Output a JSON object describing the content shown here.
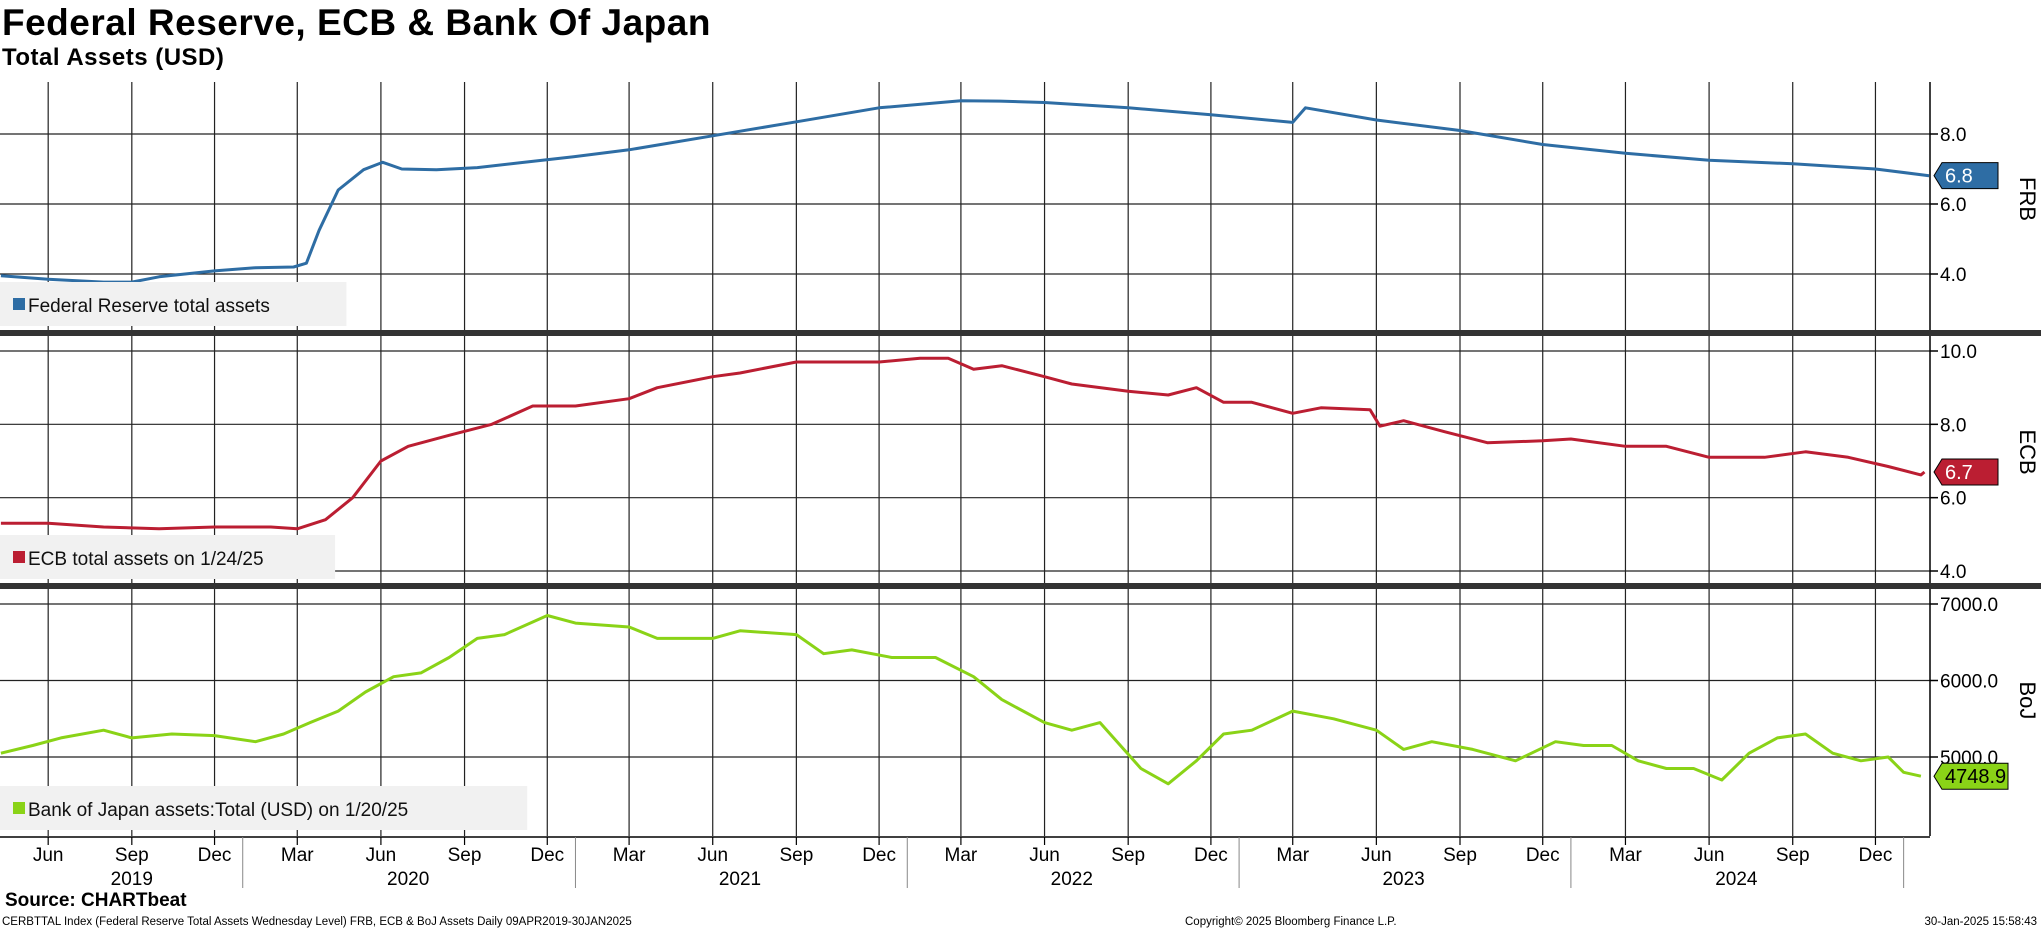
{
  "title": "Federal Reserve, ECB & Bank Of Japan",
  "subtitle": "Total Assets (USD)",
  "source": "Source: CHARTbeat",
  "footer": {
    "left": "CERBTTAL Index (Federal Reserve Total Assets Wednesday Level) FRB, ECB & BoJ Assets  Daily 09APR2019-30JAN2025",
    "center": "Copyright© 2025 Bloomberg Finance L.P.",
    "right": "30-Jan-2025 15:58:43"
  },
  "x_axis": {
    "months": [
      {
        "label": "Jun",
        "date": "2019-06-01"
      },
      {
        "label": "Sep",
        "date": "2019-09-01"
      },
      {
        "label": "Dec",
        "date": "2019-12-01"
      },
      {
        "label": "Mar",
        "date": "2020-03-01"
      },
      {
        "label": "Jun",
        "date": "2020-06-01"
      },
      {
        "label": "Sep",
        "date": "2020-09-01"
      },
      {
        "label": "Dec",
        "date": "2020-12-01"
      },
      {
        "label": "Mar",
        "date": "2021-03-01"
      },
      {
        "label": "Jun",
        "date": "2021-06-01"
      },
      {
        "label": "Sep",
        "date": "2021-09-01"
      },
      {
        "label": "Dec",
        "date": "2021-12-01"
      },
      {
        "label": "Mar",
        "date": "2022-03-01"
      },
      {
        "label": "Jun",
        "date": "2022-06-01"
      },
      {
        "label": "Sep",
        "date": "2022-09-01"
      },
      {
        "label": "Dec",
        "date": "2022-12-01"
      },
      {
        "label": "Mar",
        "date": "2023-03-01"
      },
      {
        "label": "Jun",
        "date": "2023-06-01"
      },
      {
        "label": "Sep",
        "date": "2023-09-01"
      },
      {
        "label": "Dec",
        "date": "2023-12-01"
      },
      {
        "label": "Mar",
        "date": "2024-03-01"
      },
      {
        "label": "Jun",
        "date": "2024-06-01"
      },
      {
        "label": "Sep",
        "date": "2024-09-01"
      },
      {
        "label": "Dec",
        "date": "2024-12-01"
      }
    ],
    "years": [
      {
        "label": "2019",
        "date": "2019-09-01"
      },
      {
        "label": "2020",
        "date": "2020-07-01"
      },
      {
        "label": "2021",
        "date": "2021-07-01"
      },
      {
        "label": "2022",
        "date": "2022-07-01"
      },
      {
        "label": "2023",
        "date": "2023-07-01"
      },
      {
        "label": "2024",
        "date": "2024-07-01"
      }
    ],
    "date_range": [
      "2019-04-09",
      "2025-01-30"
    ]
  },
  "chart_data": [
    {
      "type": "line",
      "axis_title": "FRB",
      "legend": "Federal Reserve total assets",
      "color": "#2e6da4",
      "ylim": [
        2.6,
        9.6
      ],
      "yticks": [
        "4.0",
        "6.0",
        "8.0"
      ],
      "last_value": "6.8",
      "series": [
        {
          "name": "Federal Reserve total assets",
          "x": [
            "2019-04-10",
            "2019-06-01",
            "2019-08-01",
            "2019-09-01",
            "2019-10-01",
            "2019-12-01",
            "2020-01-15",
            "2020-02-26",
            "2020-03-11",
            "2020-03-25",
            "2020-04-15",
            "2020-05-13",
            "2020-06-03",
            "2020-06-24",
            "2020-08-01",
            "2020-09-15",
            "2020-11-01",
            "2020-12-30",
            "2021-03-01",
            "2021-06-01",
            "2021-09-01",
            "2021-12-01",
            "2022-03-01",
            "2022-04-13",
            "2022-06-01",
            "2022-09-01",
            "2022-12-01",
            "2023-03-01",
            "2023-03-15",
            "2023-06-01",
            "2023-09-01",
            "2023-12-01",
            "2024-03-01",
            "2024-06-01",
            "2024-09-01",
            "2024-12-01",
            "2025-01-29"
          ],
          "y": [
            3.95,
            3.85,
            3.77,
            3.77,
            3.92,
            4.09,
            4.18,
            4.2,
            4.31,
            5.25,
            6.4,
            6.98,
            7.19,
            7.0,
            6.98,
            7.04,
            7.18,
            7.35,
            7.55,
            7.95,
            8.35,
            8.75,
            8.95,
            8.94,
            8.9,
            8.75,
            8.55,
            8.33,
            8.75,
            8.4,
            8.1,
            7.7,
            7.45,
            7.25,
            7.15,
            7.0,
            6.81
          ]
        }
      ]
    },
    {
      "type": "line",
      "axis_title": "ECB",
      "legend": "ECB total assets on 1/24/25",
      "color": "#bb1e32",
      "ylim": [
        3.8,
        10.3
      ],
      "yticks": [
        "4.0",
        "6.0",
        "8.0",
        "10.0"
      ],
      "last_value": "6.7",
      "series": [
        {
          "name": "ECB total assets",
          "x": [
            "2019-04-10",
            "2019-06-01",
            "2019-08-01",
            "2019-10-01",
            "2019-12-01",
            "2020-02-01",
            "2020-03-01",
            "2020-04-01",
            "2020-05-01",
            "2020-06-01",
            "2020-07-01",
            "2020-08-15",
            "2020-10-01",
            "2020-11-15",
            "2021-01-01",
            "2021-03-01",
            "2021-04-01",
            "2021-06-01",
            "2021-07-01",
            "2021-09-01",
            "2021-12-01",
            "2022-01-15",
            "2022-02-15",
            "2022-03-15",
            "2022-04-15",
            "2022-06-01",
            "2022-07-01",
            "2022-09-01",
            "2022-10-15",
            "2022-11-15",
            "2022-12-15",
            "2023-01-15",
            "2023-03-01",
            "2023-04-01",
            "2023-05-25",
            "2023-06-05",
            "2023-07-01",
            "2023-08-15",
            "2023-10-01",
            "2023-12-01",
            "2024-01-01",
            "2024-03-01",
            "2024-04-15",
            "2024-06-01",
            "2024-08-01",
            "2024-09-15",
            "2024-11-01",
            "2024-12-15",
            "2025-01-20",
            "2025-01-24"
          ],
          "y": [
            5.3,
            5.3,
            5.2,
            5.15,
            5.2,
            5.2,
            5.15,
            5.4,
            6.0,
            7.0,
            7.4,
            7.7,
            8.0,
            8.5,
            8.5,
            8.7,
            9.0,
            9.3,
            9.4,
            9.7,
            9.7,
            9.8,
            9.8,
            9.5,
            9.6,
            9.3,
            9.1,
            8.9,
            8.8,
            9.0,
            8.6,
            8.6,
            8.3,
            8.45,
            8.4,
            7.95,
            8.1,
            7.8,
            7.5,
            7.55,
            7.6,
            7.4,
            7.4,
            7.1,
            7.1,
            7.25,
            7.1,
            6.85,
            6.62,
            6.7
          ]
        }
      ]
    },
    {
      "type": "line",
      "axis_title": "BoJ",
      "legend": "Bank of Japan assets:Total (USD)  on 1/20/25",
      "color": "#8ad317",
      "ylim": [
        4050,
        7200
      ],
      "yticks": [
        "5000.0",
        "6000.0",
        "7000.0"
      ],
      "last_value": "4748.9",
      "series": [
        {
          "name": "Bank of Japan assets:Total (USD)",
          "x": [
            "2019-04-10",
            "2019-05-15",
            "2019-06-15",
            "2019-08-01",
            "2019-09-01",
            "2019-10-15",
            "2019-12-01",
            "2020-01-15",
            "2020-02-15",
            "2020-03-15",
            "2020-04-15",
            "2020-05-15",
            "2020-06-15",
            "2020-07-15",
            "2020-08-15",
            "2020-09-15",
            "2020-10-15",
            "2020-12-01",
            "2021-01-01",
            "2021-03-01",
            "2021-04-01",
            "2021-06-01",
            "2021-07-01",
            "2021-09-01",
            "2021-10-01",
            "2021-11-01",
            "2021-12-15",
            "2022-02-01",
            "2022-03-15",
            "2022-04-15",
            "2022-06-01",
            "2022-07-01",
            "2022-08-01",
            "2022-09-15",
            "2022-10-15",
            "2022-11-15",
            "2022-12-15",
            "2023-01-15",
            "2023-03-01",
            "2023-04-15",
            "2023-06-01",
            "2023-07-01",
            "2023-08-01",
            "2023-09-15",
            "2023-11-01",
            "2023-12-15",
            "2024-01-15",
            "2024-02-15",
            "2024-03-15",
            "2024-04-15",
            "2024-05-15",
            "2024-06-15",
            "2024-07-15",
            "2024-08-15",
            "2024-09-15",
            "2024-10-15",
            "2024-11-15",
            "2024-12-15",
            "2025-01-01",
            "2025-01-20"
          ],
          "y": [
            5050,
            5150,
            5250,
            5350,
            5250,
            5300,
            5280,
            5200,
            5300,
            5450,
            5600,
            5850,
            6050,
            6100,
            6300,
            6550,
            6600,
            6850,
            6750,
            6700,
            6550,
            6550,
            6650,
            6600,
            6350,
            6400,
            6300,
            6300,
            6050,
            5750,
            5450,
            5350,
            5450,
            4850,
            4650,
            4950,
            5300,
            5350,
            5600,
            5500,
            5350,
            5100,
            5200,
            5100,
            4950,
            5200,
            5150,
            5150,
            4950,
            4850,
            4850,
            4700,
            5050,
            5250,
            5300,
            5050,
            4950,
            5000,
            4800,
            4748.9
          ]
        }
      ]
    }
  ]
}
